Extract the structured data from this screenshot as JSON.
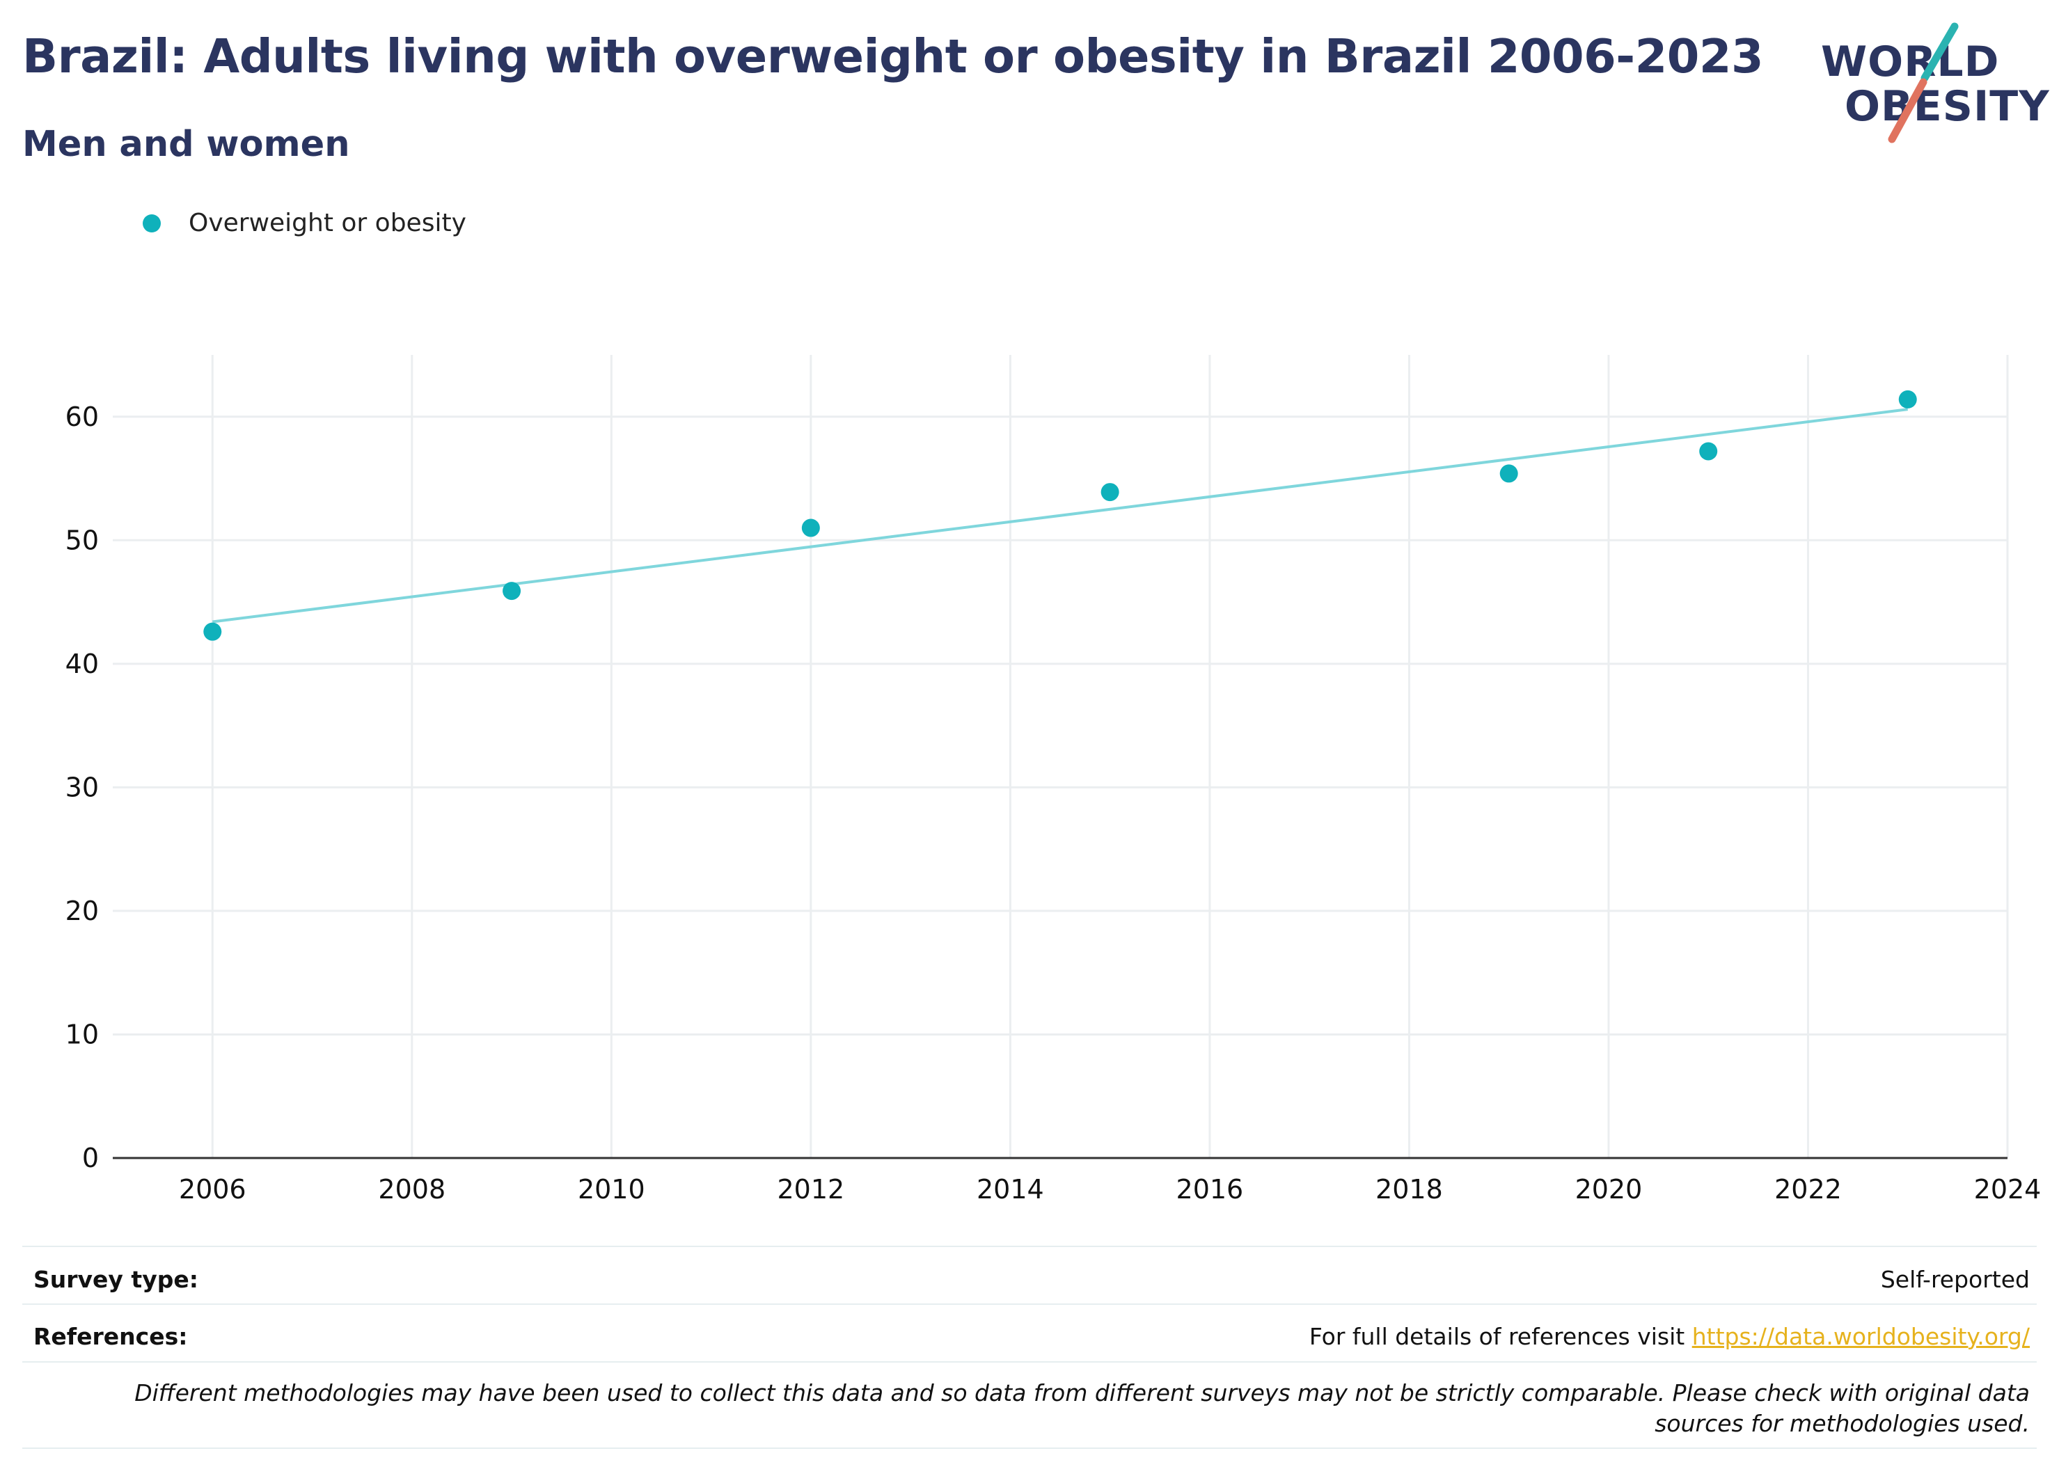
{
  "header": {
    "title": "Brazil: Adults living with overweight or obesity in Brazil 2006-2023",
    "subtitle": "Men and women"
  },
  "logo": {
    "line1": "WORLD",
    "line2": "OBESITY",
    "colors": {
      "text": "#2b3560",
      "slash_top": "#2bb3b1",
      "slash_bottom": "#e0735f"
    }
  },
  "legend": {
    "label": "Overweight or obesity",
    "color": "#0fb1bb"
  },
  "chart_data": {
    "type": "scatter",
    "series": [
      {
        "name": "Overweight or obesity",
        "color": "#0fb1bb",
        "x": [
          2006,
          2009,
          2012,
          2015,
          2019,
          2021,
          2023
        ],
        "y": [
          42.6,
          45.9,
          51.0,
          53.9,
          55.4,
          57.2,
          61.4
        ]
      }
    ],
    "trendline": {
      "color": "#7fd6dc",
      "x": [
        2006,
        2023
      ],
      "y": [
        43.4,
        60.6
      ]
    },
    "xlim": [
      2005,
      2024
    ],
    "ylim": [
      0,
      65
    ],
    "xticks": [
      2006,
      2008,
      2010,
      2012,
      2014,
      2016,
      2018,
      2020,
      2022,
      2024
    ],
    "yticks": [
      0,
      10,
      20,
      30,
      40,
      50,
      60
    ],
    "xlabel": "",
    "ylabel": "",
    "grid": true,
    "legend_position": "top-left"
  },
  "footer": {
    "survey_type_label": "Survey type:",
    "survey_type_value": "Self-reported",
    "references_label": "References:",
    "references_text": "For full details of references visit ",
    "references_link": "https://data.worldobesity.org/",
    "note": "Different methodologies may have been used to collect this data and so data from different surveys may not be strictly comparable. Please check with original data sources for methodologies used."
  }
}
